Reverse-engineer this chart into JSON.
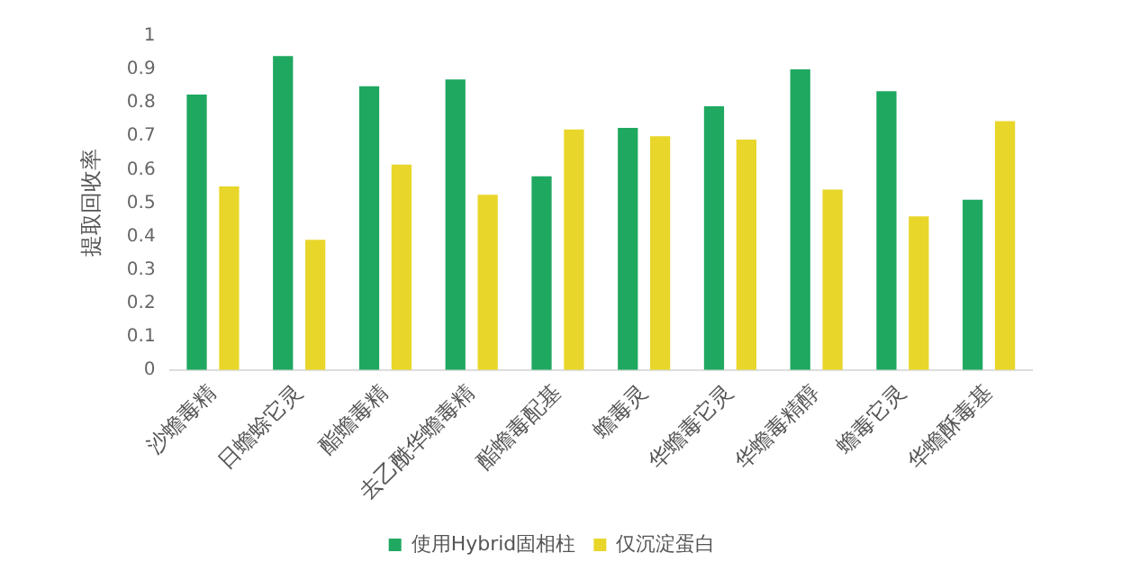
{
  "chart_data": {
    "type": "bar",
    "ylabel": "提取回收率",
    "categories": [
      "沙蟾毒精",
      "日蟾蜍它灵",
      "酯蟾毒精",
      "去乙酰华蟾毒精",
      "酯蟾毒配基",
      "蟾毒灵",
      "华蟾毒它灵",
      "华蟾毒精醇",
      "蟾毒它灵",
      "华蟾酥毒基"
    ],
    "series": [
      {
        "name": "使用Hybrid固相柱",
        "color": "#1fa860",
        "values": [
          0.825,
          0.94,
          0.85,
          0.87,
          0.58,
          0.725,
          0.79,
          0.9,
          0.835,
          0.51
        ]
      },
      {
        "name": "仅沉淀蛋白",
        "color": "#e8d62a",
        "values": [
          0.55,
          0.39,
          0.615,
          0.525,
          0.72,
          0.7,
          0.69,
          0.54,
          0.46,
          0.745
        ]
      }
    ],
    "ylim": [
      0,
      1
    ],
    "yticks": [
      0,
      0.1,
      0.2,
      0.3,
      0.4,
      0.5,
      0.6,
      0.7,
      0.8,
      0.9,
      1
    ],
    "grid": false,
    "legend": "bottom"
  }
}
